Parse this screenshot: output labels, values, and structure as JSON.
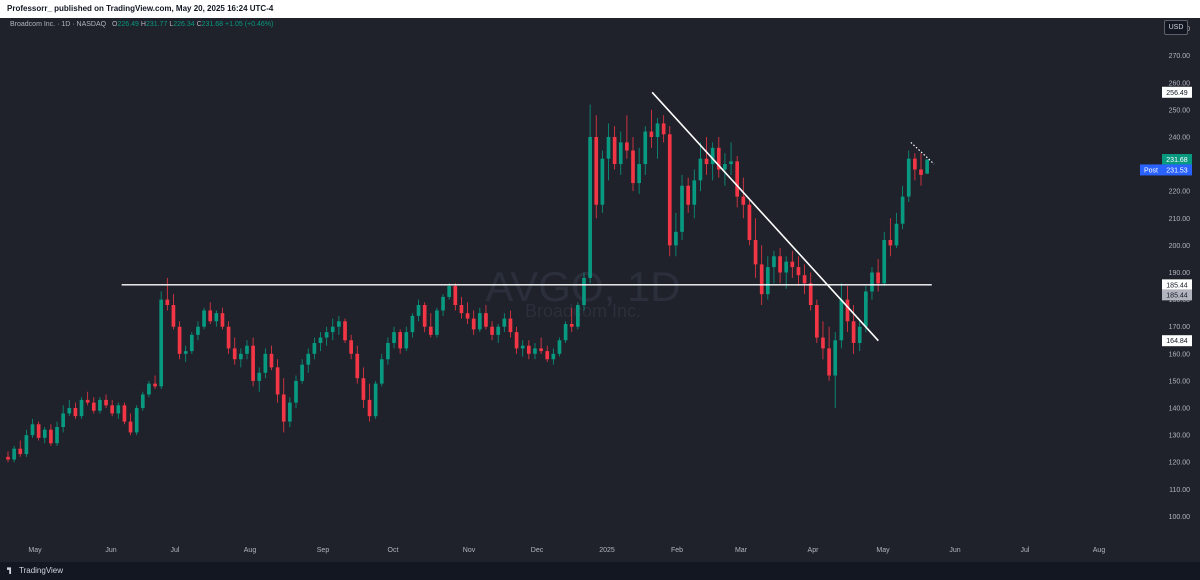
{
  "header": {
    "published_text": "Professorr_ published on TradingView.com, May 20, 2025 16:24 UTC-4"
  },
  "legend": {
    "instrument": "Broadcom Inc. · 1D · NASDAQ",
    "open_label": "O",
    "open": "226.49",
    "high_label": "H",
    "high": "231.77",
    "low_label": "L",
    "low": "226.34",
    "close_label": "C",
    "close": "231.68",
    "change": "+1.05 (+0.46%)"
  },
  "currency": "USD",
  "watermark": {
    "ticker": "AVGO, 1D",
    "name": "Broadcom Inc."
  },
  "footer": {
    "logo_text": "TradingView"
  },
  "colors": {
    "up": "#089981",
    "down": "#f23645",
    "background": "#1f222b",
    "post_tag": "#2962ff",
    "last_tag": "#089981"
  },
  "chart_data": {
    "type": "candlestick",
    "ticker": "AVGO",
    "interval": "1D",
    "exchange": "NASDAQ",
    "ylim": [
      95,
      285
    ],
    "y_ticks": [
      "100.00",
      "110.00",
      "120.00",
      "130.00",
      "140.00",
      "150.00",
      "160.00",
      "170.00",
      "180.00",
      "190.00",
      "200.00",
      "210.00",
      "220.00",
      "230.00",
      "240.00",
      "250.00",
      "260.00",
      "270.00",
      "280.00"
    ],
    "x_ticks": [
      "May",
      "Jun",
      "Jul",
      "Aug",
      "Sep",
      "Oct",
      "Nov",
      "Dec",
      "2025",
      "Feb",
      "Mar",
      "Apr",
      "May",
      "Jun",
      "Jul",
      "Aug"
    ],
    "price_tags": [
      {
        "value": 256.49,
        "label": "256.49",
        "style": "light"
      },
      {
        "value": 231.68,
        "label": "231.68",
        "style": "last"
      },
      {
        "value": 231.53,
        "label": "231.53",
        "style": "post",
        "prefix": "Post"
      },
      {
        "value": 185.44,
        "label": "185.44",
        "style": "light"
      },
      {
        "value": 185.44,
        "label": "185.44",
        "style": "gray"
      },
      {
        "value": 164.84,
        "label": "164.84",
        "style": "light"
      }
    ],
    "horizontal_line": {
      "value": 185.44,
      "from": "2024-06-06",
      "to": "2025-05-22"
    },
    "trendline": {
      "from": {
        "date": "2025-01-21",
        "value": 256.49
      },
      "to": {
        "date": "2025-04-29",
        "value": 164.84
      }
    },
    "dotted_trendline": {
      "from": {
        "date": "2025-05-13",
        "value": 238
      },
      "to": {
        "date": "2025-05-23",
        "value": 230
      }
    },
    "candles_ohlc": [
      [
        122,
        124,
        120,
        121
      ],
      [
        121,
        126,
        120,
        125
      ],
      [
        125,
        128,
        122,
        123
      ],
      [
        123,
        132,
        122,
        130
      ],
      [
        130,
        136,
        129,
        134
      ],
      [
        134,
        135,
        128,
        129
      ],
      [
        129,
        133,
        127,
        132
      ],
      [
        132,
        134,
        126,
        127
      ],
      [
        127,
        135,
        126,
        133
      ],
      [
        133,
        141,
        131,
        138
      ],
      [
        138,
        143,
        137,
        140
      ],
      [
        140,
        142,
        136,
        137
      ],
      [
        137,
        144,
        136,
        143
      ],
      [
        143,
        146,
        141,
        142
      ],
      [
        142,
        144,
        138,
        139
      ],
      [
        139,
        144,
        138,
        143
      ],
      [
        143,
        145,
        140,
        141
      ],
      [
        141,
        143,
        137,
        138
      ],
      [
        138,
        142,
        136,
        141
      ],
      [
        141,
        142,
        134,
        135
      ],
      [
        135,
        138,
        130,
        131
      ],
      [
        131,
        141,
        130,
        140
      ],
      [
        140,
        146,
        139,
        145
      ],
      [
        145,
        150,
        144,
        149
      ],
      [
        149,
        152,
        147,
        148
      ],
      [
        148,
        183,
        147,
        180
      ],
      [
        180,
        188,
        176,
        178
      ],
      [
        178,
        182,
        169,
        170
      ],
      [
        170,
        172,
        158,
        160
      ],
      [
        160,
        163,
        157,
        161
      ],
      [
        161,
        168,
        160,
        167
      ],
      [
        167,
        172,
        165,
        170
      ],
      [
        170,
        177,
        169,
        176
      ],
      [
        176,
        179,
        171,
        172
      ],
      [
        172,
        176,
        170,
        175
      ],
      [
        175,
        177,
        169,
        170
      ],
      [
        170,
        172,
        160,
        162
      ],
      [
        162,
        166,
        156,
        158
      ],
      [
        158,
        162,
        155,
        160
      ],
      [
        160,
        165,
        158,
        163
      ],
      [
        163,
        166,
        148,
        150
      ],
      [
        150,
        155,
        146,
        153
      ],
      [
        153,
        162,
        151,
        160
      ],
      [
        160,
        163,
        154,
        155
      ],
      [
        155,
        158,
        142,
        145
      ],
      [
        145,
        151,
        131,
        135
      ],
      [
        135,
        144,
        133,
        142
      ],
      [
        142,
        152,
        140,
        150
      ],
      [
        150,
        158,
        149,
        156
      ],
      [
        156,
        162,
        153,
        160
      ],
      [
        160,
        166,
        158,
        164
      ],
      [
        164,
        168,
        161,
        166
      ],
      [
        166,
        170,
        163,
        168
      ],
      [
        168,
        173,
        165,
        170
      ],
      [
        170,
        174,
        167,
        172
      ],
      [
        172,
        173,
        164,
        165
      ],
      [
        165,
        167,
        158,
        160
      ],
      [
        160,
        163,
        149,
        151
      ],
      [
        151,
        155,
        140,
        143
      ],
      [
        143,
        149,
        135,
        137
      ],
      [
        137,
        150,
        136,
        149
      ],
      [
        149,
        160,
        148,
        158
      ],
      [
        158,
        166,
        156,
        164
      ],
      [
        164,
        170,
        162,
        168
      ],
      [
        168,
        169,
        160,
        162
      ],
      [
        162,
        170,
        161,
        168
      ],
      [
        168,
        175,
        166,
        174
      ],
      [
        174,
        180,
        172,
        178
      ],
      [
        178,
        179,
        168,
        170
      ],
      [
        170,
        175,
        166,
        167
      ],
      [
        167,
        177,
        166,
        176
      ],
      [
        176,
        182,
        174,
        181
      ],
      [
        181,
        186,
        180,
        185
      ],
      [
        185,
        186,
        176,
        178
      ],
      [
        178,
        181,
        173,
        175
      ],
      [
        175,
        179,
        171,
        173
      ],
      [
        173,
        176,
        167,
        169
      ],
      [
        169,
        177,
        168,
        175
      ],
      [
        175,
        178,
        169,
        170
      ],
      [
        170,
        172,
        165,
        167
      ],
      [
        167,
        171,
        164,
        170
      ],
      [
        170,
        175,
        168,
        173
      ],
      [
        173,
        176,
        166,
        168
      ],
      [
        168,
        170,
        160,
        162
      ],
      [
        162,
        165,
        159,
        163
      ],
      [
        163,
        165,
        158,
        160
      ],
      [
        160,
        164,
        158,
        162
      ],
      [
        162,
        166,
        160,
        161
      ],
      [
        161,
        163,
        157,
        158
      ],
      [
        158,
        162,
        156,
        160
      ],
      [
        160,
        166,
        159,
        165
      ],
      [
        165,
        172,
        164,
        171
      ],
      [
        171,
        177,
        168,
        170
      ],
      [
        170,
        179,
        169,
        178
      ],
      [
        178,
        190,
        176,
        188
      ],
      [
        188,
        252,
        186,
        240
      ],
      [
        240,
        248,
        210,
        215
      ],
      [
        215,
        235,
        212,
        232
      ],
      [
        232,
        245,
        224,
        240
      ],
      [
        240,
        244,
        228,
        230
      ],
      [
        230,
        242,
        226,
        238
      ],
      [
        238,
        248,
        232,
        235
      ],
      [
        235,
        240,
        220,
        223
      ],
      [
        223,
        236,
        219,
        230
      ],
      [
        230,
        244,
        226,
        242
      ],
      [
        242,
        250,
        236,
        240
      ],
      [
        240,
        247,
        232,
        245
      ],
      [
        245,
        248,
        238,
        241
      ],
      [
        241,
        244,
        196,
        200
      ],
      [
        200,
        212,
        196,
        205
      ],
      [
        205,
        226,
        202,
        222
      ],
      [
        222,
        225,
        212,
        215
      ],
      [
        215,
        228,
        210,
        224
      ],
      [
        224,
        238,
        220,
        232
      ],
      [
        232,
        240,
        226,
        230
      ],
      [
        230,
        238,
        224,
        236
      ],
      [
        236,
        240,
        225,
        228
      ],
      [
        228,
        234,
        222,
        230
      ],
      [
        230,
        238,
        226,
        231
      ],
      [
        231,
        233,
        214,
        218
      ],
      [
        218,
        225,
        210,
        215
      ],
      [
        215,
        217,
        200,
        202
      ],
      [
        202,
        210,
        188,
        193
      ],
      [
        193,
        200,
        178,
        182
      ],
      [
        182,
        196,
        180,
        192
      ],
      [
        192,
        198,
        186,
        196
      ],
      [
        196,
        199,
        186,
        190
      ],
      [
        190,
        196,
        184,
        194
      ],
      [
        194,
        198,
        188,
        192
      ],
      [
        192,
        196,
        185,
        189
      ],
      [
        189,
        193,
        182,
        186
      ],
      [
        186,
        190,
        176,
        178
      ],
      [
        178,
        180,
        164,
        166
      ],
      [
        166,
        172,
        158,
        162
      ],
      [
        162,
        170,
        150,
        152
      ],
      [
        152,
        168,
        140,
        165
      ],
      [
        165,
        186,
        162,
        180
      ],
      [
        180,
        185,
        168,
        172
      ],
      [
        172,
        178,
        160,
        164
      ],
      [
        164,
        172,
        161,
        170
      ],
      [
        170,
        185,
        168,
        183
      ],
      [
        183,
        192,
        180,
        190
      ],
      [
        190,
        195,
        183,
        186
      ],
      [
        186,
        205,
        185,
        202
      ],
      [
        202,
        210,
        196,
        200
      ],
      [
        200,
        212,
        199,
        208
      ],
      [
        208,
        222,
        206,
        218
      ],
      [
        218,
        235,
        216,
        232
      ],
      [
        232,
        234,
        224,
        228
      ],
      [
        228,
        234,
        222,
        226
      ],
      [
        226.49,
        231.77,
        226.34,
        231.68
      ]
    ]
  }
}
